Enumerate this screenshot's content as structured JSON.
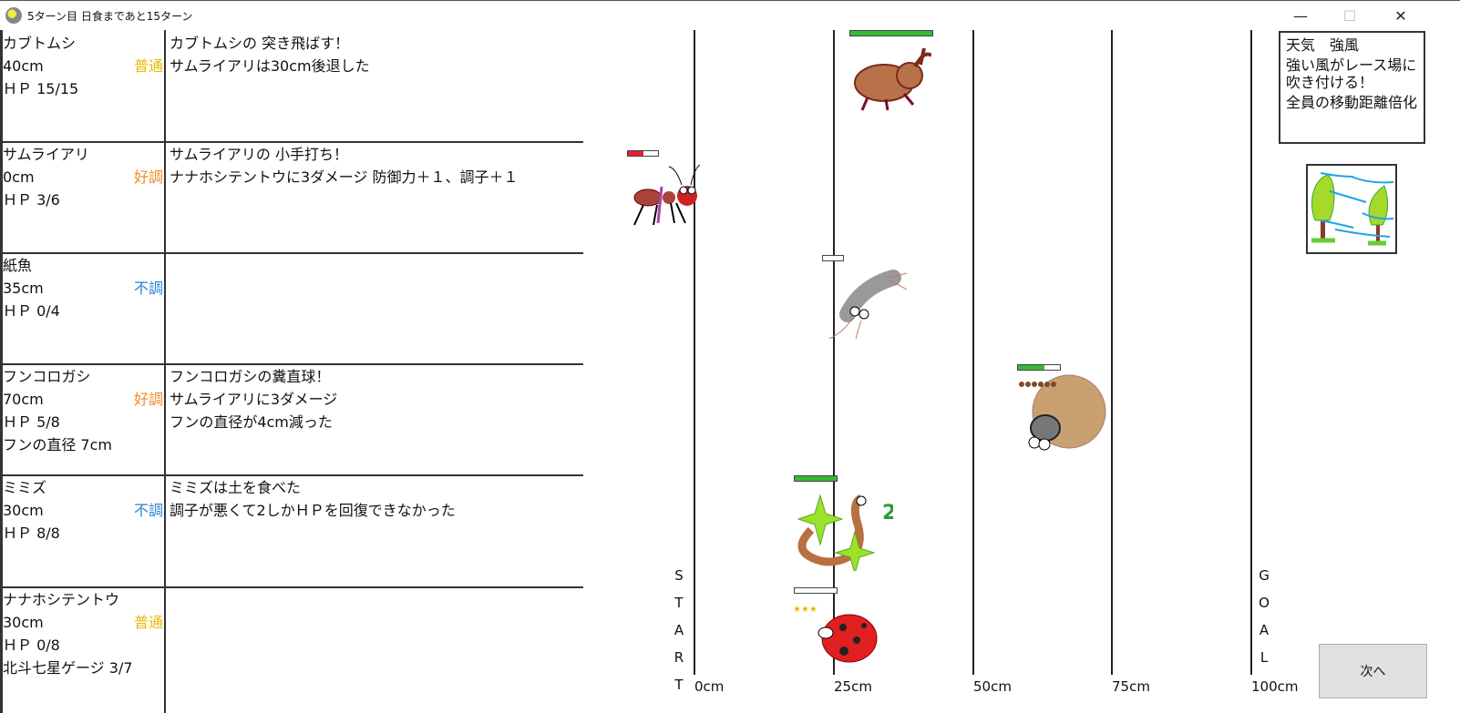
{
  "window": {
    "title": "5ターン目 日食まであと15ターン",
    "minimize": "—",
    "maximize": "☐",
    "close": "✕"
  },
  "colors": {
    "normal": "#e6b800",
    "good": "#f08a24",
    "bad": "#2a7fd0",
    "hp_green": "#33bb33",
    "hp_red": "#dd2233"
  },
  "racers": [
    {
      "name": "カブトムシ",
      "position": "40cm",
      "condition": "普通",
      "cond_type": "normal",
      "hp": "ＨＰ 15/15",
      "extra": "",
      "log": [
        "カブトムシの 突き飛ばす！",
        "サムライアリは30cm後退した"
      ],
      "hp_fraction": 1.0
    },
    {
      "name": "サムライアリ",
      "position": "0cm",
      "condition": "好調",
      "cond_type": "good",
      "hp": "ＨＰ 3/6",
      "extra": "",
      "log": [
        "サムライアリの 小手打ち！",
        "ナナホシテントウに3ダメージ  防御力＋１、調子＋１"
      ],
      "hp_fraction": 0.5
    },
    {
      "name": "紙魚",
      "position": "35cm",
      "condition": "不調",
      "cond_type": "bad",
      "hp": "ＨＰ 0/4",
      "extra": "",
      "log": [],
      "hp_fraction": 0
    },
    {
      "name": "フンコロガシ",
      "position": "70cm",
      "condition": "好調",
      "cond_type": "good",
      "hp": "ＨＰ 5/8",
      "extra": "フンの直径 7cm",
      "log": [
        "フンコロガシの糞直球！",
        "サムライアリに3ダメージ",
        "フンの直径が4cm減った"
      ],
      "hp_fraction": 0.625
    },
    {
      "name": "ミミズ",
      "position": "30cm",
      "condition": "不調",
      "cond_type": "bad",
      "hp": "ＨＰ 8/8",
      "extra": "",
      "log": [
        "ミミズは土を食べた",
        "調子が悪くて2しかＨＰを回復できなかった"
      ],
      "hp_fraction": 1.0,
      "heal_popup": "2"
    },
    {
      "name": "ナナホシテントウ",
      "position": "30cm",
      "condition": "普通",
      "cond_type": "normal",
      "hp": "ＨＰ 0/8",
      "extra": "北斗七星ゲージ 3/7",
      "log": [],
      "hp_fraction": 0,
      "stars": "★★★"
    }
  ],
  "track": {
    "ticks": [
      "0cm",
      "25cm",
      "50cm",
      "75cm",
      "100cm"
    ],
    "start": [
      "S",
      "T",
      "A",
      "R",
      "T"
    ],
    "goal": [
      "G",
      "O",
      "A",
      "L"
    ]
  },
  "weather": {
    "title": "天気　強風",
    "lines": [
      "強い風がレース場に吹き付ける！",
      "全員の移動距離倍化"
    ],
    "icon": "wind-trees-icon"
  },
  "next_button": "次へ"
}
